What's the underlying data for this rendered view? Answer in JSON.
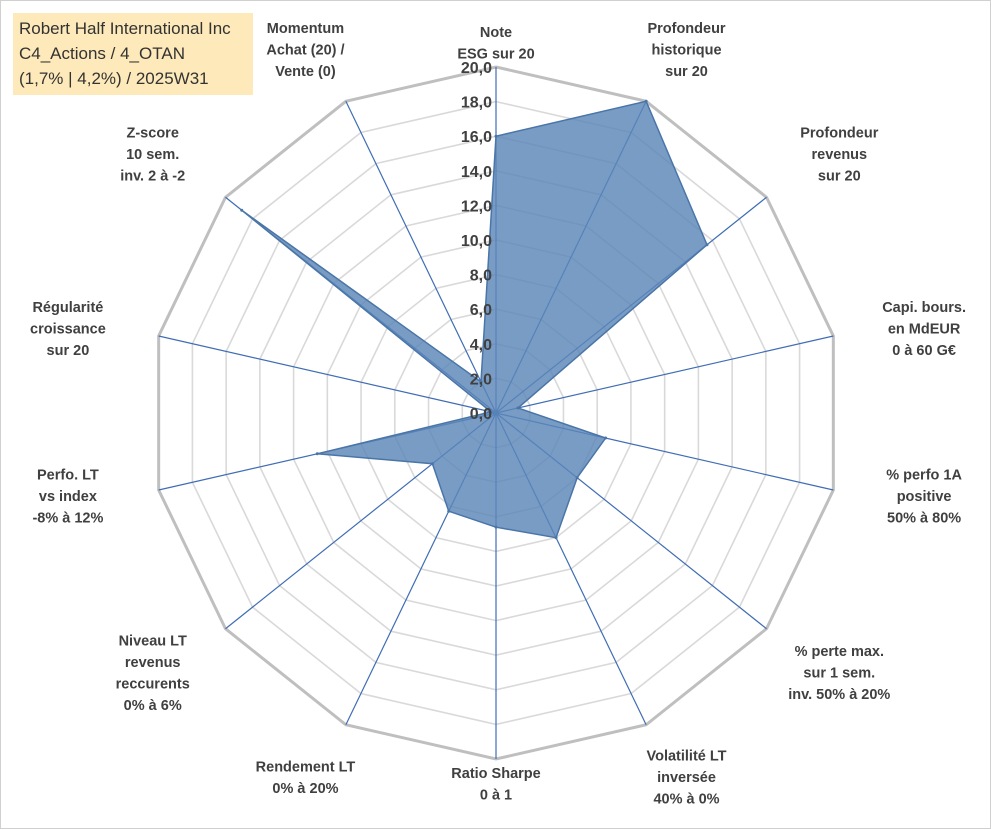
{
  "title": {
    "line1": "Robert Half International Inc",
    "line2": "C4_Actions / 4_OTAN",
    "line3": "(1,7% | 4,2%) / 2025W31"
  },
  "colors": {
    "fill": "#5b86b8",
    "stroke": "#4a75a8",
    "spoke": "#3f6db5",
    "grid_outer": "#bfbfbf",
    "grid_inner": "#d9d9d9",
    "text": "#404040"
  },
  "chart_data": {
    "type": "radar",
    "rmin": 0,
    "rmax": 20,
    "tick_step": 2,
    "tick_labels": [
      "0,0",
      "2,0",
      "4,0",
      "6,0",
      "8,0",
      "10,0",
      "12,0",
      "14,0",
      "16,0",
      "18,0",
      "20,0"
    ],
    "axes": [
      {
        "label": [
          "Note",
          "ESG sur 20"
        ],
        "value": 16.0
      },
      {
        "label": [
          "Profondeur",
          "historique",
          "sur 20"
        ],
        "value": 20.0
      },
      {
        "label": [
          "Profondeur",
          "revenus",
          "sur 20"
        ],
        "value": 15.6
      },
      {
        "label": [
          "Capi. bours.",
          "en MdEUR",
          "0 à 60 G€"
        ],
        "value": 1.3
      },
      {
        "label": [
          "% perfo 1A",
          "positive",
          "50% à 80%"
        ],
        "value": 6.5
      },
      {
        "label": [
          "% perte max.",
          "sur 1 sem.",
          "inv. 50% à 20%"
        ],
        "value": 6.0
      },
      {
        "label": [
          "Volatilité LT",
          "inversée",
          "40% à 0%"
        ],
        "value": 8.0
      },
      {
        "label": [
          "Ratio Sharpe",
          "0 à 1"
        ],
        "value": 6.6
      },
      {
        "label": [
          "Rendement LT",
          "0% à 20%"
        ],
        "value": 6.3
      },
      {
        "label": [
          "Niveau LT",
          "revenus",
          "reccurents",
          "0% à 6%"
        ],
        "value": 4.7
      },
      {
        "label": [
          "Perfo. LT",
          "vs index",
          "-8% à 12%"
        ],
        "value": 10.6
      },
      {
        "label": [
          "Régularité",
          "croissance",
          "sur 20"
        ],
        "value": 0.3
      },
      {
        "label": [
          "Z-score",
          "10 sem.",
          "inv. 2 à -2"
        ],
        "value": 18.8
      },
      {
        "label": [
          "Momentum",
          "Achat (20) /",
          "Vente (0)"
        ],
        "value": 2.0
      }
    ]
  }
}
